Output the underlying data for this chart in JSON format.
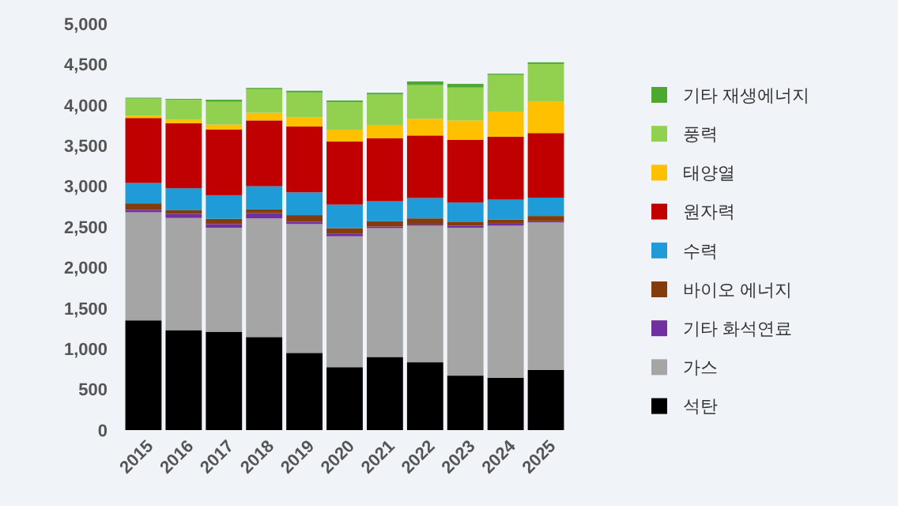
{
  "chart_data": {
    "type": "bar",
    "stacked": true,
    "categories": [
      "2015",
      "2016",
      "2017",
      "2018",
      "2019",
      "2020",
      "2021",
      "2022",
      "2023",
      "2024",
      "2025"
    ],
    "ylim": [
      0,
      5000
    ],
    "yticks": [
      {
        "value": 0,
        "label": "0"
      },
      {
        "value": 500,
        "label": "500"
      },
      {
        "value": 1000,
        "label": "1,000"
      },
      {
        "value": 1500,
        "label": "1,500"
      },
      {
        "value": 2000,
        "label": "2,000"
      },
      {
        "value": 2500,
        "label": "2,500"
      },
      {
        "value": 3000,
        "label": "3,000"
      },
      {
        "value": 3500,
        "label": "3,500"
      },
      {
        "value": 4000,
        "label": "4,000"
      },
      {
        "value": 4500,
        "label": "4,500"
      },
      {
        "value": 5000,
        "label": "5,000"
      }
    ],
    "grid": false,
    "legend": "right",
    "series": [
      {
        "name": "석탄",
        "color": "#000000",
        "values": [
          1350,
          1230,
          1210,
          1145,
          950,
          775,
          900,
          835,
          670,
          645,
          740
        ]
      },
      {
        "name": "가스",
        "color": "#a5a5a5",
        "values": [
          1330,
          1380,
          1280,
          1460,
          1585,
          1610,
          1585,
          1680,
          1820,
          1870,
          1815
        ]
      },
      {
        "name": "기타 화석연료",
        "color": "#7030a0",
        "values": [
          30,
          50,
          45,
          65,
          30,
          35,
          20,
          15,
          25,
          25,
          15
        ]
      },
      {
        "name": "바이오 에너지",
        "color": "#843c0c",
        "values": [
          80,
          45,
          65,
          45,
          80,
          65,
          65,
          75,
          50,
          50,
          65
        ]
      },
      {
        "name": "수력",
        "color": "#1f9bd7",
        "values": [
          250,
          270,
          290,
          285,
          280,
          290,
          245,
          250,
          235,
          245,
          225
        ]
      },
      {
        "name": "원자력",
        "color": "#c00000",
        "values": [
          800,
          800,
          810,
          810,
          810,
          775,
          775,
          770,
          770,
          775,
          795
        ]
      },
      {
        "name": "태양열",
        "color": "#ffc000",
        "values": [
          30,
          45,
          60,
          95,
          115,
          145,
          165,
          205,
          240,
          310,
          385
        ]
      },
      {
        "name": "풍력",
        "color": "#92d050",
        "values": [
          210,
          245,
          280,
          290,
          305,
          340,
          375,
          415,
          405,
          450,
          465
        ]
      },
      {
        "name": "기타 재생에너지",
        "color": "#4ea72e",
        "values": [
          10,
          10,
          25,
          15,
          20,
          20,
          20,
          45,
          45,
          15,
          20
        ]
      }
    ]
  }
}
